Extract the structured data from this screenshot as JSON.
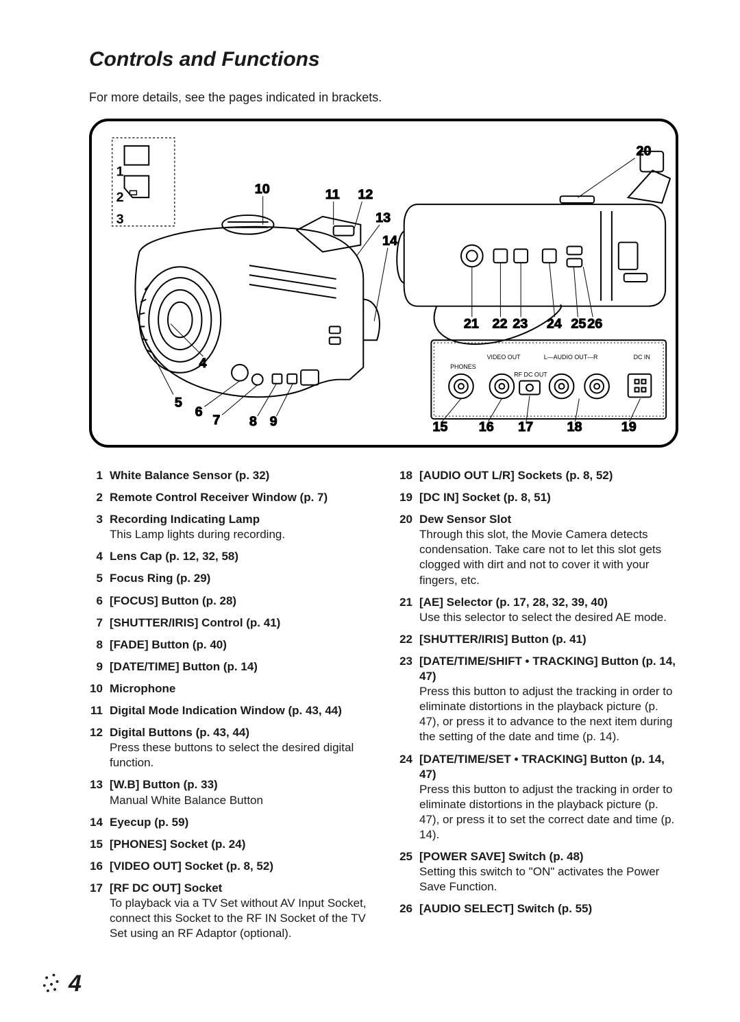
{
  "title": "Controls and Functions",
  "subtitle": "For more details, see the pages indicated in brackets.",
  "page_number": "4",
  "diagram": {
    "labels_left_view": [
      "1",
      "2",
      "3",
      "4",
      "5",
      "6",
      "7",
      "8",
      "9",
      "10",
      "11",
      "12",
      "13",
      "14"
    ],
    "labels_right_view": [
      "15",
      "16",
      "17",
      "18",
      "19",
      "20",
      "21",
      "22",
      "23",
      "24",
      "25",
      "26"
    ],
    "socket_panel_labels": [
      "PHONES",
      "VIDEO OUT",
      "RF DC OUT",
      "L—AUDIO OUT—R",
      "DC IN"
    ]
  },
  "items_left": [
    {
      "n": "1",
      "title": "White Balance Sensor (p. 32)"
    },
    {
      "n": "2",
      "title": "Remote Control Receiver Window (p. 7)"
    },
    {
      "n": "3",
      "title": "Recording Indicating Lamp",
      "desc": "This Lamp lights during recording."
    },
    {
      "n": "4",
      "title": "Lens Cap (p. 12, 32, 58)"
    },
    {
      "n": "5",
      "title": "Focus Ring (p. 29)"
    },
    {
      "n": "6",
      "title": "[FOCUS] Button (p. 28)"
    },
    {
      "n": "7",
      "title": "[SHUTTER/IRIS] Control (p. 41)"
    },
    {
      "n": "8",
      "title": "[FADE] Button (p. 40)"
    },
    {
      "n": "9",
      "title": "[DATE/TIME] Button (p. 14)"
    },
    {
      "n": "10",
      "title": "Microphone"
    },
    {
      "n": "11",
      "title": "Digital Mode Indication Window (p. 43, 44)"
    },
    {
      "n": "12",
      "title": "Digital Buttons (p. 43, 44)",
      "desc": "Press these buttons to select the desired digital function."
    },
    {
      "n": "13",
      "title": "[W.B] Button (p. 33)",
      "desc": "Manual White Balance Button"
    },
    {
      "n": "14",
      "title": "Eyecup (p. 59)"
    },
    {
      "n": "15",
      "title": "[PHONES] Socket (p. 24)"
    },
    {
      "n": "16",
      "title": "[VIDEO OUT] Socket (p. 8, 52)"
    },
    {
      "n": "17",
      "title": "[RF DC OUT] Socket",
      "desc": "To playback via a TV Set without AV Input Socket, connect this Socket to the RF IN Socket of the TV Set using an RF Adaptor (optional)."
    }
  ],
  "items_right": [
    {
      "n": "18",
      "title": "[AUDIO OUT L/R] Sockets (p. 8, 52)"
    },
    {
      "n": "19",
      "title": "[DC IN] Socket (p. 8, 51)"
    },
    {
      "n": "20",
      "title": "Dew Sensor Slot",
      "desc": "Through this slot, the Movie Camera detects condensation. Take care not to let this slot gets clogged with dirt and not to cover it with your fingers, etc."
    },
    {
      "n": "21",
      "title": "[AE] Selector (p. 17, 28, 32, 39, 40)",
      "desc": "Use this selector to select the desired AE mode."
    },
    {
      "n": "22",
      "title": "[SHUTTER/IRIS] Button (p. 41)"
    },
    {
      "n": "23",
      "title": "[DATE/TIME/SHIFT • TRACKING] Button (p. 14, 47)",
      "desc": "Press this button to adjust the tracking in order to eliminate distortions in the playback picture (p. 47), or press it to advance to the next item during the setting of the date and time (p. 14)."
    },
    {
      "n": "24",
      "title": "[DATE/TIME/SET • TRACKING] Button (p. 14, 47)",
      "desc": "Press this button to adjust the tracking in order to eliminate distortions in the playback picture (p. 47), or press it to set the correct date and time (p. 14)."
    },
    {
      "n": "25",
      "title": "[POWER SAVE] Switch (p. 48)",
      "desc": "Setting this switch to \"ON\" activates the Power Save Function."
    },
    {
      "n": "26",
      "title": "[AUDIO SELECT] Switch (p. 55)"
    }
  ]
}
